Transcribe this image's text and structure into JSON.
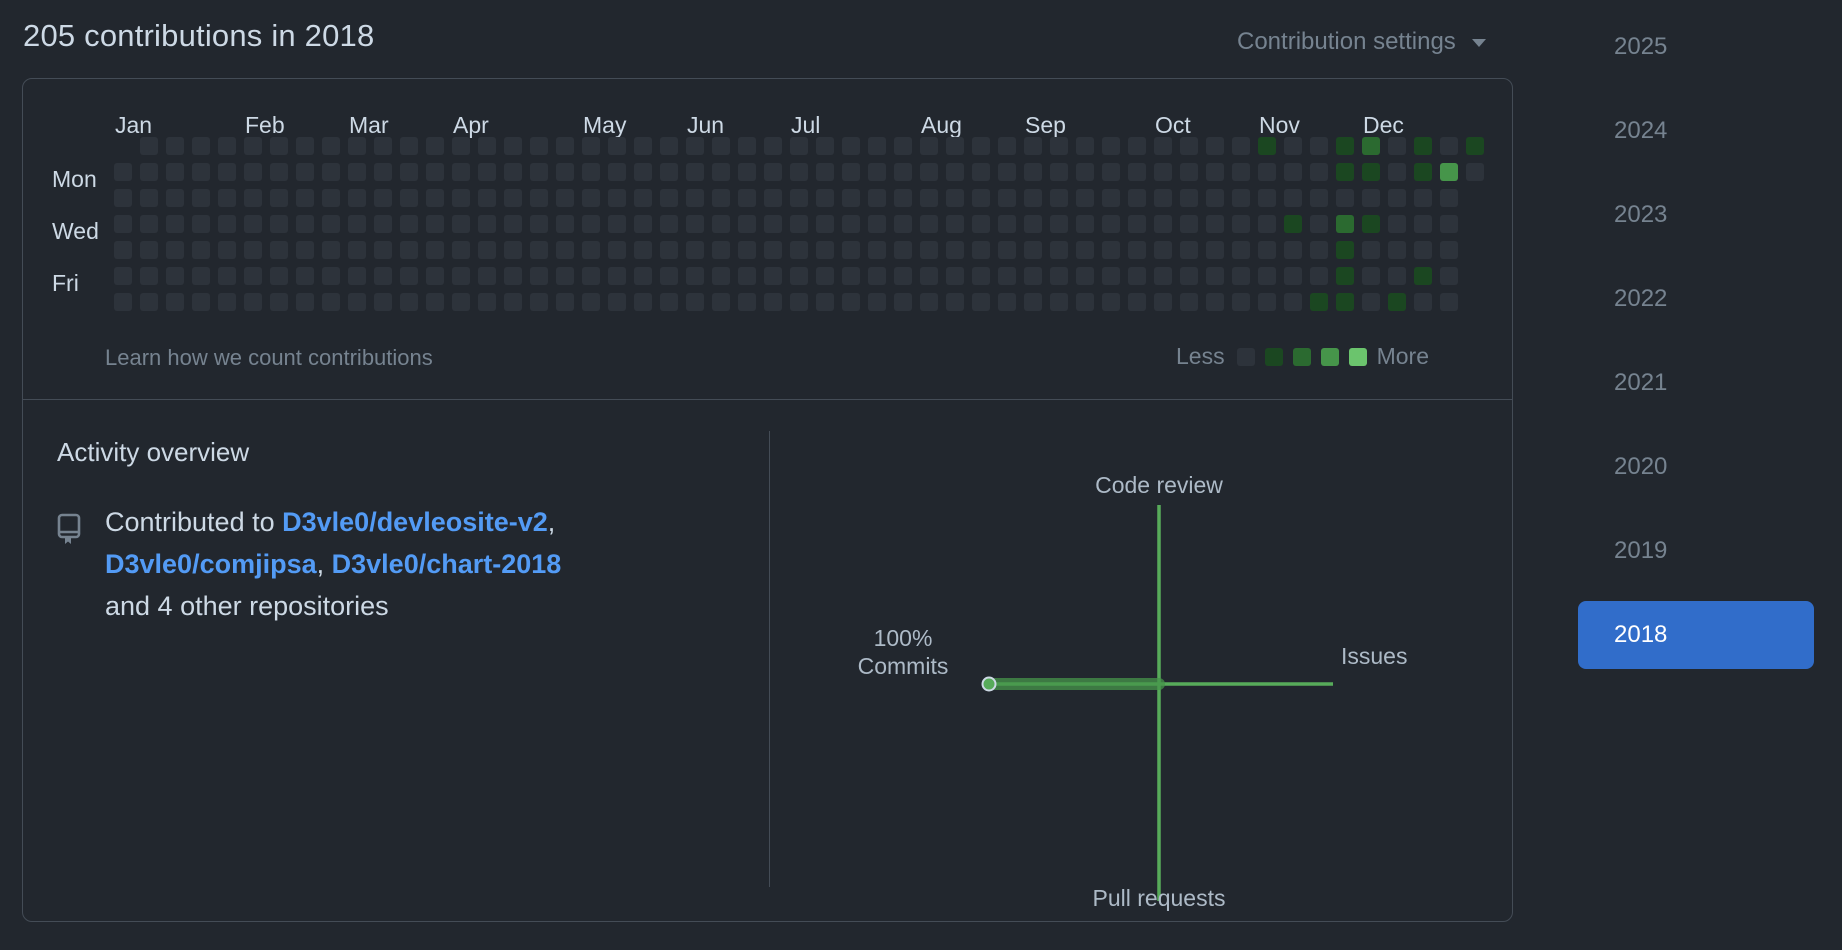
{
  "header": {
    "title": "205 contributions in 2018",
    "settings_label": "Contribution settings"
  },
  "graph": {
    "months": [
      "Jan",
      "Feb",
      "Mar",
      "Apr",
      "May",
      "Jun",
      "Jul",
      "Aug",
      "Sep",
      "Oct",
      "Nov",
      "Dec"
    ],
    "month_week_index": [
      0,
      5,
      9,
      13,
      18,
      22,
      26,
      31,
      35,
      40,
      44,
      48
    ],
    "day_labels": [
      "Mon",
      "Wed",
      "Fri"
    ],
    "weeks": 53,
    "levels": {
      "48": [
        1,
        0,
        0,
        0,
        0,
        0,
        0
      ],
      "49": [
        0,
        0,
        0,
        1,
        0,
        0,
        0
      ],
      "50": [
        0,
        0,
        0,
        0,
        0,
        0,
        1
      ],
      "51": [
        1,
        1,
        0,
        2,
        1,
        1,
        1
      ],
      "52": [
        2,
        1,
        0,
        1,
        0,
        0,
        0
      ],
      "53": [
        0,
        0,
        0,
        0,
        0,
        0,
        1
      ],
      "54": [
        1,
        1,
        0,
        0,
        0,
        1,
        0
      ],
      "55": [
        0,
        3,
        0,
        0,
        0,
        0,
        0
      ],
      "56": [
        1,
        0,
        0,
        1,
        0,
        0,
        1
      ]
    },
    "active_start_week": 45,
    "learn_text": "Learn how we count contributions",
    "legend_less": "Less",
    "legend_more": "More"
  },
  "colors": {
    "level0": "#2d333b",
    "level1": "#1b4721",
    "level2": "#2b6a30",
    "level3": "#46954a",
    "level4": "#6bc46d",
    "accent": "#316dca",
    "link": "#539bf5"
  },
  "activity": {
    "title": "Activity overview",
    "contributed_prefix": "Contributed to",
    "repos": [
      "D3vle0/devleosite-v2",
      "D3vle0/comjipsa",
      "D3vle0/chart-2018"
    ],
    "others": "and 4 other repositories",
    "icon": "repo-icon"
  },
  "radar": {
    "top_label": "Code review",
    "bottom_label": "Pull requests",
    "right_label": "Issues",
    "left_label": "Commits",
    "commits_percent": "100%",
    "commits_value": 100,
    "issues_value": 0,
    "code_review_value": 0,
    "pull_requests_value": 0
  },
  "years": {
    "items": [
      "2025",
      "2024",
      "2023",
      "2022",
      "2021",
      "2020",
      "2019",
      "2018"
    ],
    "selected": "2018"
  }
}
